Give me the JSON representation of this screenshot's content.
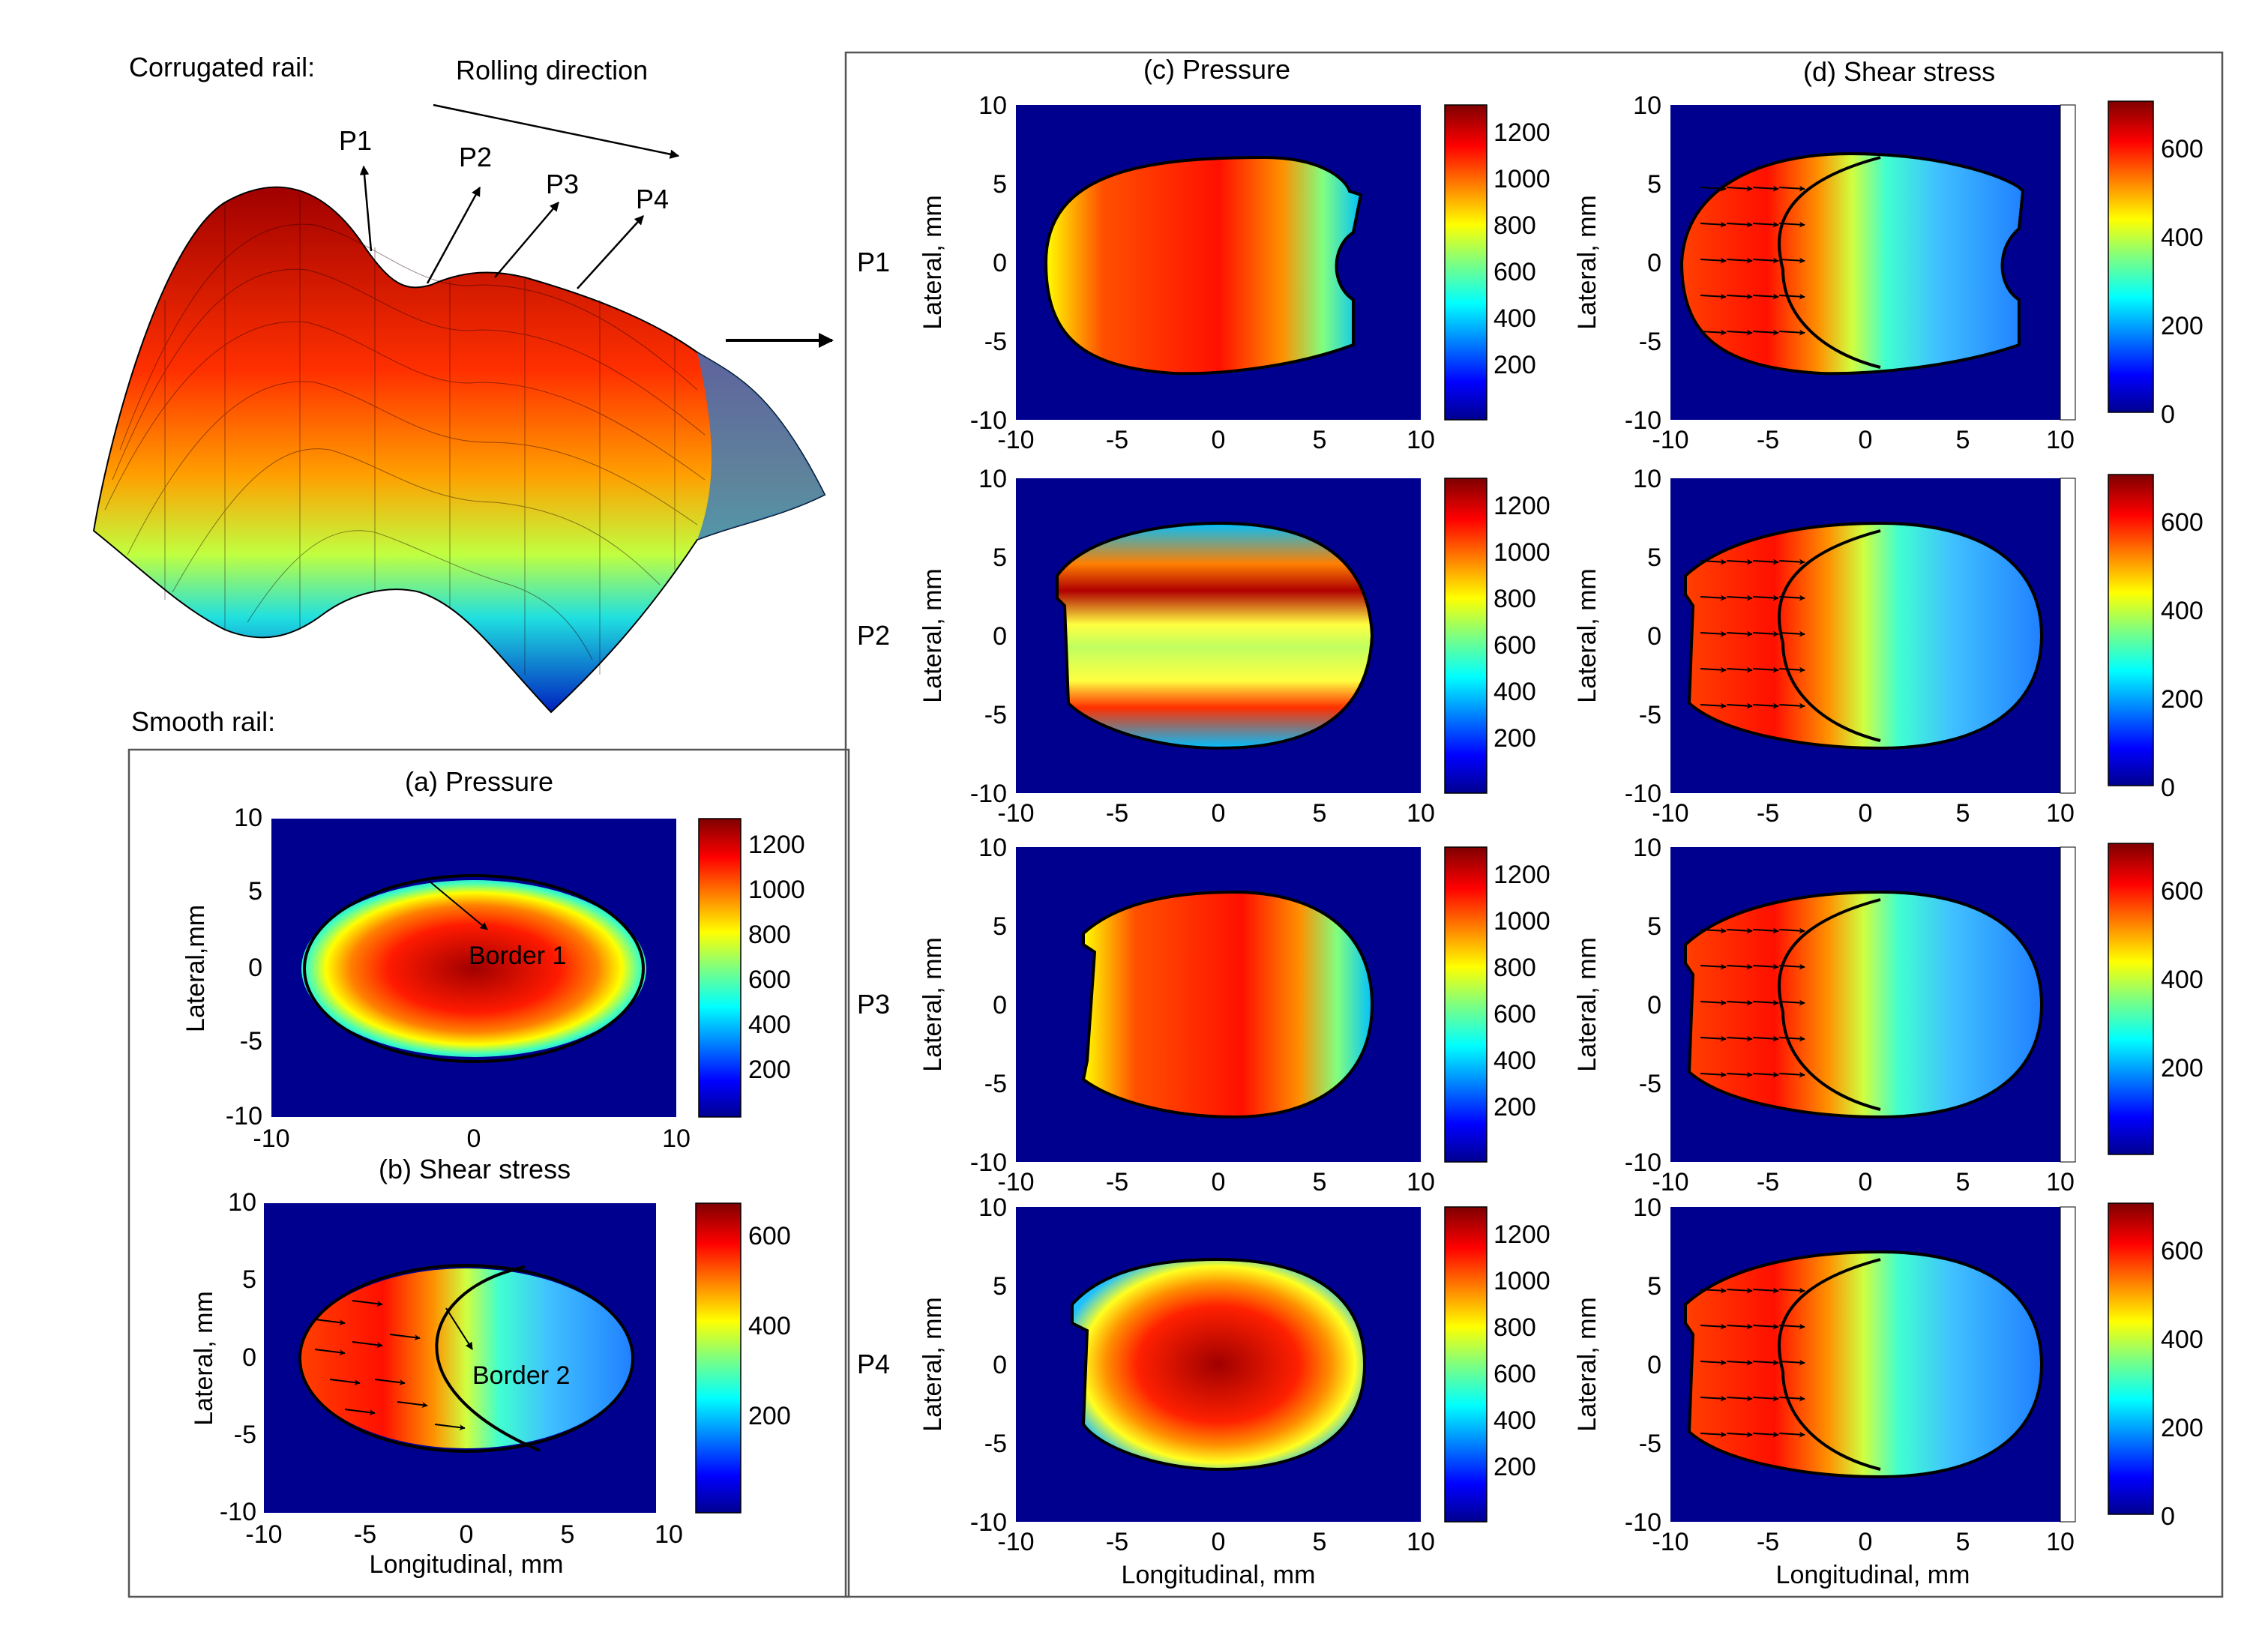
{
  "top": {
    "corrugated_label": "Corrugated rail:",
    "rolling_label": "Rolling direction",
    "positions": [
      "P1",
      "P2",
      "P3",
      "P4"
    ],
    "smooth_label": "Smooth rail:"
  },
  "axes": {
    "lateral": "Lateral, mm",
    "lateral_compact": "Lateral,mm",
    "longitudinal": "Longitudinal, mm",
    "ticks": [
      "-10",
      "-5",
      "0",
      "5",
      "10"
    ],
    "lat_ticks": [
      "10",
      "5",
      "0",
      "-5",
      "-10"
    ]
  },
  "colorbars": {
    "pressure_ticks": [
      "1200",
      "1000",
      "800",
      "600",
      "400",
      "200"
    ],
    "shear_ticks_a": [
      "600",
      "400",
      "200",
      "0"
    ],
    "shear_ticks_b": [
      "600",
      "400",
      "200"
    ]
  },
  "panels": {
    "a_title": "(a) Pressure",
    "b_title": "(b) Shear stress",
    "c_title": "(c) Pressure",
    "d_title": "(d) Shear stress",
    "border1": "Border 1",
    "border2": "Border 2"
  },
  "colors": {
    "bg": "#00008f",
    "red": "#ff0000",
    "darkred": "#7f0000",
    "yellow": "#ffff00",
    "cyan": "#00ffff",
    "blue": "#0000ff"
  }
}
